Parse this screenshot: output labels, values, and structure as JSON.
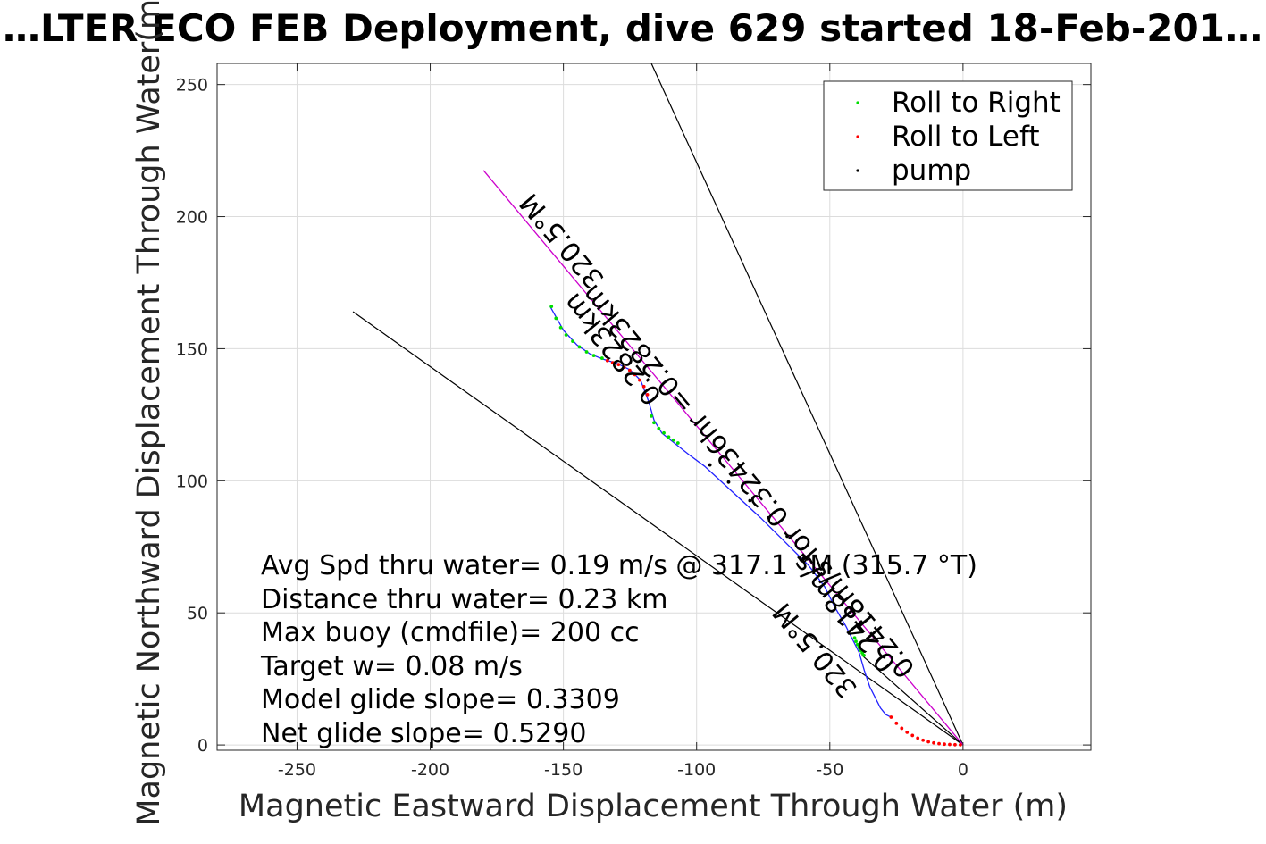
{
  "chart_data": {
    "type": "line",
    "title": "…LTER ECO FEB Deployment, dive 629 started 18-Feb-201…",
    "xlabel": "Magnetic Eastward Displacement Through Water (m)",
    "ylabel": "Magnetic Northward Displacement Through Water(m)",
    "xlim": [
      -280,
      48
    ],
    "ylim": [
      -2,
      258
    ],
    "xticks": [
      -250,
      -200,
      -150,
      -100,
      -50,
      0
    ],
    "yticks": [
      0,
      50,
      100,
      150,
      200,
      250
    ],
    "xtick_labels": [
      "-250",
      "-200",
      "-150",
      "-100",
      "-50",
      "0"
    ],
    "ytick_labels": [
      "0",
      "50",
      "100",
      "150",
      "200",
      "250"
    ],
    "grid": true,
    "legend_position": "top-right",
    "legend": [
      {
        "name": "Roll to Right",
        "color": "#00dd00"
      },
      {
        "name": "Roll to Left",
        "color": "#ff0000"
      },
      {
        "name": "pump",
        "color": "#000000"
      }
    ],
    "series": [
      {
        "name": "Roll to Right",
        "color": "#00dd00",
        "x": [
          -154.5,
          -152.8,
          -151,
          -149,
          -146.5,
          -144,
          -141.3,
          -138.6,
          -135.5,
          -117,
          -116,
          -114.2,
          -112.3,
          -110.5,
          -108.7,
          -107,
          -40.7,
          -40.2,
          -39.6,
          -39,
          -38.4,
          -37.8,
          -37.2
        ],
        "y": [
          166,
          161.5,
          158,
          155.2,
          152.8,
          150.7,
          148.8,
          147.4,
          146.4,
          124.5,
          122,
          119.8,
          118.1,
          116.6,
          115.4,
          114.3,
          40.5,
          39.2,
          38,
          36.9,
          35.8,
          34.8,
          33.9
        ]
      },
      {
        "name": "Roll to Left",
        "color": "#ff0000",
        "x": [
          -133.5,
          -131.5,
          -129.3,
          -127.2,
          -125.1,
          -123.2,
          -121.4,
          -119.8,
          -118.5,
          -27,
          -25,
          -23,
          -21,
          -19,
          -17,
          -15,
          -13,
          -11,
          -9,
          -7,
          -5,
          -3,
          -1
        ],
        "y": [
          145.5,
          144.7,
          144,
          143,
          141.8,
          140.2,
          138.1,
          135.7,
          132.6,
          10.5,
          8.2,
          6.3,
          4.8,
          3.6,
          2.6,
          1.8,
          1.2,
          0.8,
          0.5,
          0.3,
          0.2,
          0.1,
          0.05
        ]
      },
      {
        "name": "pump",
        "color": "#000000",
        "x": [
          -95,
          -88,
          -80,
          -73,
          -66,
          -58
        ],
        "y": [
          106,
          99.5,
          92.5,
          86,
          79,
          71.5
        ]
      },
      {
        "name": "",
        "color": "#2222ff",
        "x": [
          -155,
          -150,
          -145,
          -140,
          -135,
          -130,
          -125,
          -121,
          -118,
          -116,
          -113,
          -108,
          -103,
          -97,
          -90,
          -83,
          -76,
          -70,
          -64,
          -58,
          -52,
          -48,
          -44,
          -41,
          -39,
          -37,
          -35,
          -33,
          -31,
          -29,
          -27
        ],
        "y": [
          166,
          157,
          151.5,
          148,
          146,
          144.5,
          142,
          138,
          130,
          123,
          118,
          114,
          110,
          105.5,
          99,
          92.5,
          86,
          80,
          74,
          68,
          60,
          52,
          45,
          39,
          35,
          28,
          22,
          18,
          14,
          11.5,
          10.5
        ]
      },
      {
        "name": "",
        "color": "#cc00cc",
        "x": [
          -180,
          0
        ],
        "y": [
          217.5,
          0
        ]
      }
    ],
    "reference_lines": [
      {
        "x": [
          -117,
          0
        ],
        "y": [
          258,
          0
        ]
      },
      {
        "x": [
          -229,
          0
        ],
        "y": [
          164,
          0
        ]
      },
      {
        "x": [
          -38,
          0
        ],
        "y": [
          34,
          0
        ]
      }
    ],
    "rotated_annotations": [
      {
        "text": "320.5°M",
        "x": -148,
        "y": 193
      },
      {
        "text": "0.2823km",
        "x": -129,
        "y": 152
      },
      {
        "text": "0.2418m/s for 0.32436hr =0.2823km",
        "x": -78,
        "y": 102
      },
      {
        "text": "320.5°M",
        "x": -53,
        "y": 38
      },
      {
        "text": "0.2418m/s",
        "x": -42,
        "y": 52
      }
    ],
    "annotations": [
      "Avg Spd thru water=  0.19 m/s @ 317.1 °M (315.7 °T)",
      "Distance thru water=  0.23 km",
      "Max buoy (cmdfile)= 200 cc",
      "Target w= 0.08 m/s",
      "Model glide slope= 0.3309",
      "Net glide slope= 0.5290"
    ]
  }
}
